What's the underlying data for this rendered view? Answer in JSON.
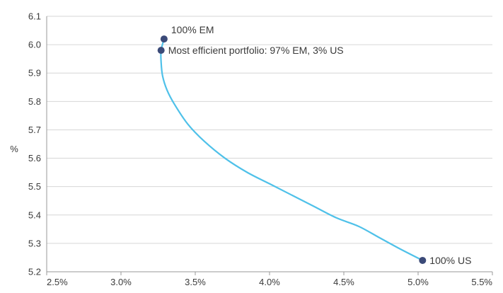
{
  "chart_data": {
    "type": "line",
    "title": "",
    "xlabel": "",
    "ylabel": "%",
    "xlim": [
      2.5,
      5.5
    ],
    "ylim": [
      5.2,
      6.1
    ],
    "grid": "horizontal",
    "x_ticks": [
      2.5,
      3.0,
      3.5,
      4.0,
      4.5,
      5.0,
      5.5
    ],
    "x_tick_labels": [
      "2.5%",
      "3.0%",
      "3.5%",
      "4.0%",
      "4.5%",
      "5.0%",
      "5.5%"
    ],
    "y_ticks": [
      5.2,
      5.3,
      5.4,
      5.5,
      5.6,
      5.7,
      5.8,
      5.9,
      6.0,
      6.1
    ],
    "y_tick_labels": [
      "5.2",
      "5.3",
      "5.4",
      "5.5",
      "5.6",
      "5.7",
      "5.8",
      "5.9",
      "6.0",
      "6.1"
    ],
    "series": [
      {
        "color": "#4fc1e9",
        "x": [
          3.29,
          3.27,
          3.27,
          3.28,
          3.31,
          3.36,
          3.45,
          3.56,
          3.7,
          3.85,
          4.0,
          4.15,
          4.3,
          4.45,
          4.6,
          4.74,
          4.88,
          5.03
        ],
        "y": [
          6.02,
          5.98,
          5.94,
          5.89,
          5.84,
          5.79,
          5.72,
          5.66,
          5.6,
          5.55,
          5.51,
          5.47,
          5.43,
          5.39,
          5.36,
          5.32,
          5.28,
          5.24
        ]
      }
    ],
    "points": [
      {
        "label": "100% EM",
        "x": 3.29,
        "y": 6.02,
        "anchor": "above-right"
      },
      {
        "label": "Most efficient portfolio: 97% EM, 3% US",
        "x": 3.27,
        "y": 5.98,
        "anchor": "right"
      },
      {
        "label": "100% US",
        "x": 5.03,
        "y": 5.24,
        "anchor": "right"
      }
    ],
    "point_color": "#3b4a78"
  }
}
